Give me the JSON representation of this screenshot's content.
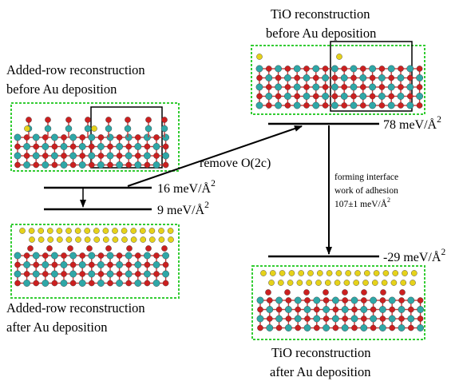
{
  "colors": {
    "titanium": "#2fa7a7",
    "oxygen": "#cc1f1f",
    "gold": "#e6d21a",
    "bond": "#c83a3a",
    "frame": "#33cc33",
    "arrow": "#000000"
  },
  "captions": {
    "ar_before_line1": "Added-row reconstruction",
    "ar_before_line2": "before Au deposition",
    "tio_before_line1": "TiO reconstruction",
    "tio_before_line2": "before Au deposition",
    "ar_after_line1": "Added-row reconstruction",
    "ar_after_line2": "after Au deposition",
    "tio_after_line1": "TiO reconstruction",
    "tio_after_line2": "after Au deposition"
  },
  "energy_levels": {
    "ar_before": {
      "value": "16 meV/Å",
      "sup": "2"
    },
    "ar_after": {
      "value": "9 meV/Å",
      "sup": "2"
    },
    "tio_before": {
      "value": "78 meV/Å",
      "sup": "2"
    },
    "tio_after": {
      "value": "-29 meV/Å",
      "sup": "2"
    }
  },
  "transitions": {
    "remove_o2c": "remove O(2c)",
    "interface_line1": "forming interface",
    "interface_line2": "work of adhesion",
    "interface_line3": "107±1 meV/Å",
    "interface_sup": "2"
  }
}
